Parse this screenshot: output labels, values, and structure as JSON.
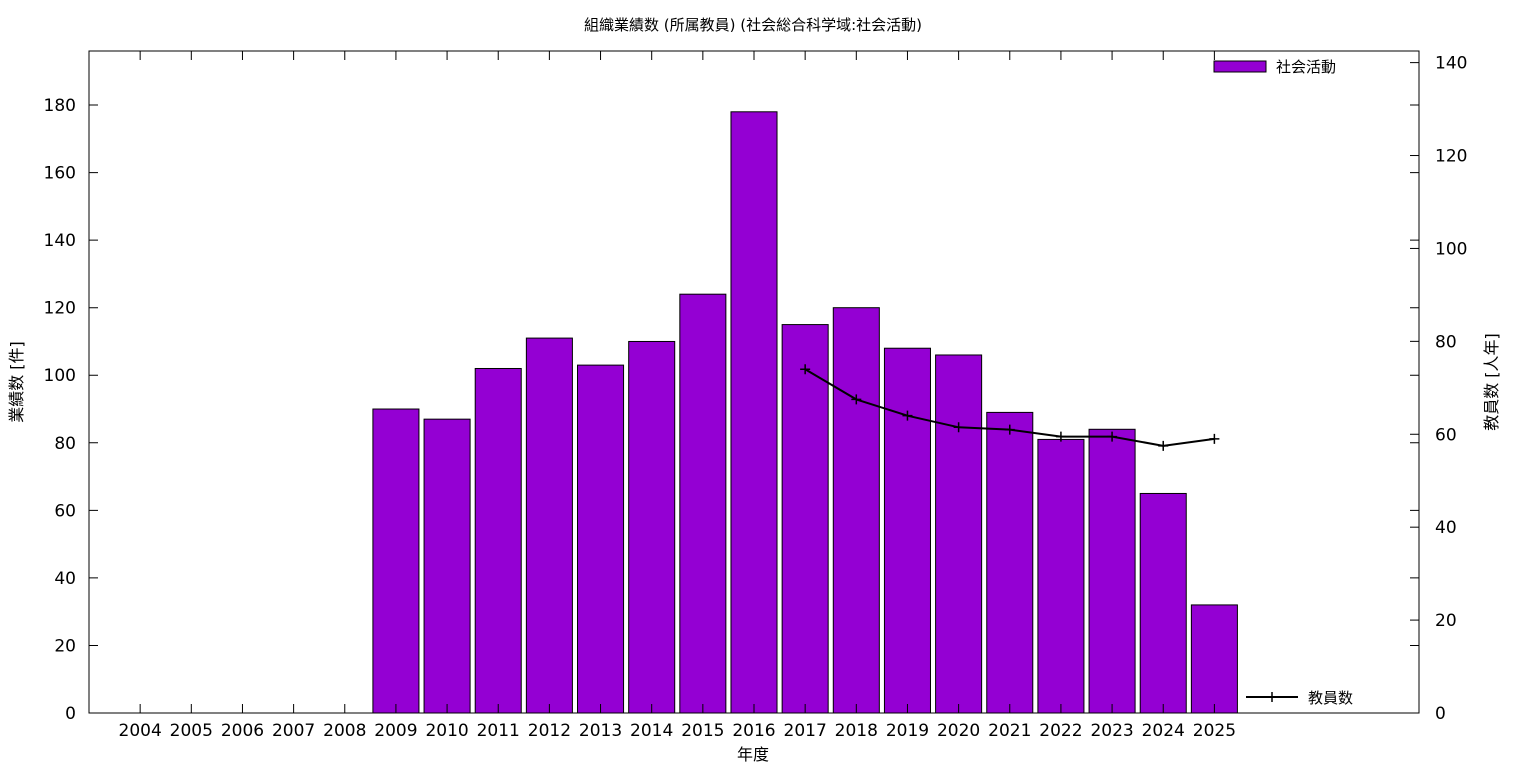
{
  "chart_data": {
    "type": "bar",
    "title": "組織業績数 (所属教員) (社会総合科学域:社会活動)",
    "xlabel": "年度",
    "ylabel": "業績数 [件]",
    "y2label": "教員数 [人年]",
    "categories": [
      "2004",
      "2005",
      "2006",
      "2007",
      "2008",
      "2009",
      "2010",
      "2011",
      "2012",
      "2013",
      "2014",
      "2015",
      "2016",
      "2017",
      "2018",
      "2019",
      "2020",
      "2021",
      "2022",
      "2023",
      "2024",
      "2025"
    ],
    "series": [
      {
        "name": "社会活動",
        "type": "bar",
        "axis": "left",
        "color": "#9400d3",
        "values": [
          null,
          null,
          null,
          null,
          null,
          90,
          87,
          102,
          111,
          103,
          110,
          124,
          178,
          115,
          120,
          108,
          106,
          89,
          81,
          84,
          65,
          32
        ]
      },
      {
        "name": "教員数",
        "type": "line",
        "axis": "right",
        "color": "#000000",
        "values": [
          null,
          null,
          null,
          null,
          null,
          null,
          null,
          null,
          null,
          null,
          null,
          null,
          null,
          74,
          67.5,
          64,
          61.5,
          61,
          59.5,
          59.5,
          57.5,
          59
        ]
      }
    ],
    "ylim": [
      0,
      196
    ],
    "yticks": [
      0,
      20,
      40,
      60,
      80,
      100,
      120,
      140,
      160,
      180
    ],
    "y2lim": [
      0,
      142.5
    ],
    "y2ticks": [
      0,
      20,
      40,
      60,
      80,
      100,
      120,
      140
    ],
    "legend": [
      "top-right",
      "bottom-right"
    ],
    "grid": false
  }
}
